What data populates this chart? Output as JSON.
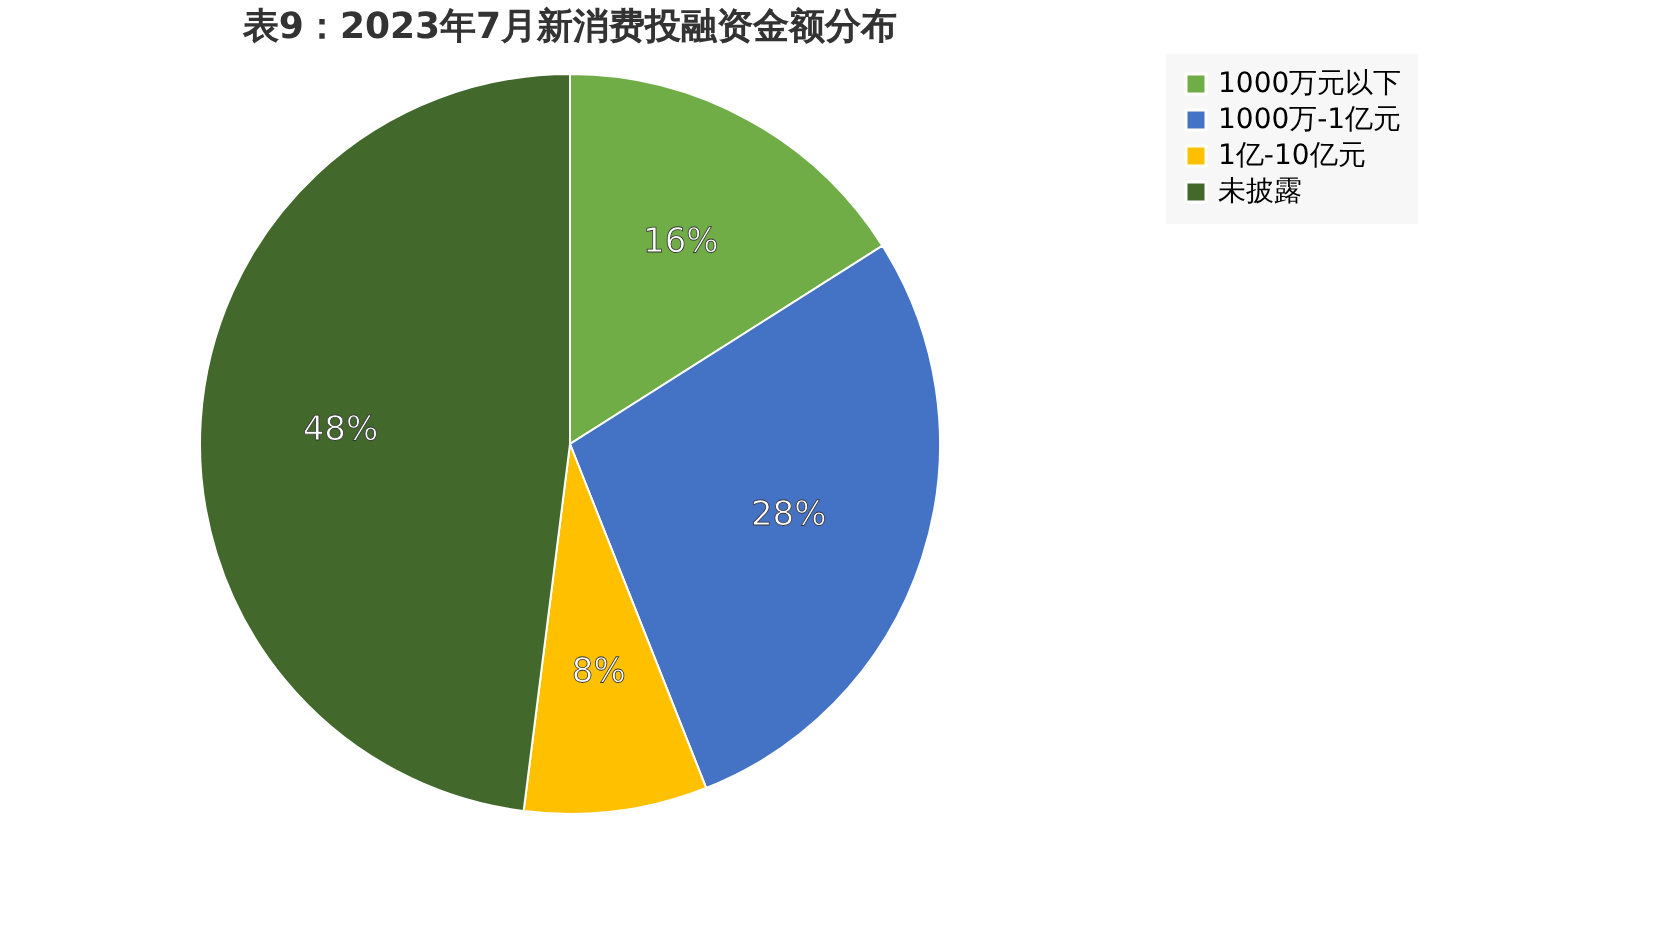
{
  "chart_data": {
    "type": "pie",
    "title": "表9：2023年7月新消费投融资金额分布",
    "categories": [
      "1000万元以下",
      "1000万-1亿元",
      "1亿-10亿元",
      "未披露"
    ],
    "values": [
      16,
      28,
      8,
      48
    ],
    "colors": [
      "#70ad47",
      "#4472c4",
      "#ffc000",
      "#43682b"
    ],
    "value_labels": [
      "16%",
      "28%",
      "8%",
      "48%"
    ],
    "legend": "right"
  }
}
